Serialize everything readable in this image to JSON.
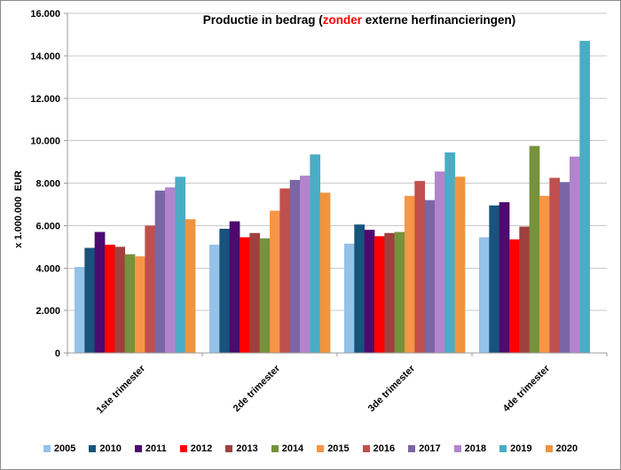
{
  "title": {
    "part1": "Productie in bedrag (",
    "highlight": "zonder",
    "part2": " externe herfinancieringen)"
  },
  "colors": {
    "grid": "#c9c9c9",
    "axis": "#9b9b9b",
    "text": "#000000",
    "title_highlight": "#ff0000",
    "background": "#ffffff",
    "border": "#8c8c8c"
  },
  "chart_data": {
    "type": "bar",
    "title": "Productie in bedrag (zonder externe herfinancieringen)",
    "ylabel": "x 1.000.000  EUR",
    "xlabel": "",
    "ylim": [
      0,
      16000
    ],
    "grid": "horizontal",
    "legend_position": "bottom",
    "y_ticks": [
      {
        "value": 0,
        "label": "0"
      },
      {
        "value": 2000,
        "label": "2.000"
      },
      {
        "value": 4000,
        "label": "4.000"
      },
      {
        "value": 6000,
        "label": "6.000"
      },
      {
        "value": 8000,
        "label": "8.000"
      },
      {
        "value": 10000,
        "label": "10.000"
      },
      {
        "value": 12000,
        "label": "12.000"
      },
      {
        "value": 14000,
        "label": "14.000"
      },
      {
        "value": 16000,
        "label": "16.000"
      }
    ],
    "categories": [
      "1ste trimester",
      "2de trimester",
      "3de trimester",
      "4de trimester"
    ],
    "series": [
      {
        "name": "2005",
        "color": "#94c2e8",
        "values": [
          4050,
          5100,
          5150,
          5450
        ]
      },
      {
        "name": "2010",
        "color": "#17537c",
        "values": [
          4950,
          5850,
          6050,
          6950
        ]
      },
      {
        "name": "2011",
        "color": "#4e0a6f",
        "values": [
          5700,
          6200,
          5800,
          7100
        ]
      },
      {
        "name": "2012",
        "color": "#ff0000",
        "values": [
          5100,
          5450,
          5500,
          5350
        ]
      },
      {
        "name": "2013",
        "color": "#9e413e",
        "values": [
          5000,
          5650,
          5650,
          5950
        ]
      },
      {
        "name": "2014",
        "color": "#76923c",
        "values": [
          4650,
          5400,
          5700,
          9750
        ]
      },
      {
        "name": "2015",
        "color": "#f79646",
        "values": [
          4550,
          6700,
          7400,
          7400
        ]
      },
      {
        "name": "2016",
        "color": "#c0504d",
        "values": [
          6000,
          7750,
          8100,
          8250
        ]
      },
      {
        "name": "2017",
        "color": "#7a66a5",
        "values": [
          7650,
          8150,
          7200,
          8050
        ]
      },
      {
        "name": "2018",
        "color": "#b284ce",
        "values": [
          7800,
          8350,
          8550,
          9250
        ]
      },
      {
        "name": "2019",
        "color": "#4bacc6",
        "values": [
          8300,
          9350,
          9450,
          14700
        ]
      },
      {
        "name": "2020",
        "color": "#f0943d",
        "values": [
          6300,
          7550,
          8300,
          null
        ]
      }
    ]
  }
}
